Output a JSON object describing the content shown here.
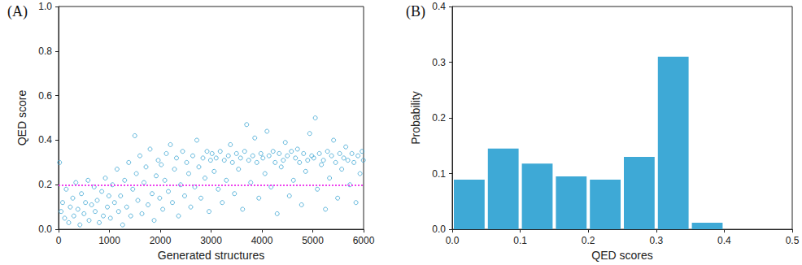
{
  "chart_data": [
    {
      "type": "scatter",
      "title": "(A)",
      "x_label": "Generated structures",
      "y_label": "QED score",
      "color": "#3ea6d3",
      "marker": "circle_open",
      "xlim": [
        0,
        6000
      ],
      "xticks": [
        0,
        1000,
        2000,
        3000,
        4000,
        5000,
        6000
      ],
      "ylim": [
        0,
        1.0
      ],
      "yticks": [
        {
          "value": 0,
          "label": "0.0"
        },
        {
          "value": 0.2,
          "label": "0.2"
        },
        {
          "value": 0.4,
          "label": "0.4"
        },
        {
          "value": 0.6,
          "label": "0.6"
        },
        {
          "value": 0.8,
          "label": "0.8"
        },
        {
          "value": 1.0,
          "label": "1.0"
        }
      ],
      "grid": false,
      "hline": {
        "value": 0.2,
        "color": "#ee44ee",
        "line_style": "dotted"
      },
      "x": [
        20,
        50,
        80,
        120,
        150,
        200,
        230,
        280,
        300,
        340,
        380,
        420,
        450,
        500,
        530,
        580,
        600,
        650,
        700,
        720,
        760,
        800,
        850,
        880,
        920,
        960,
        990,
        1020,
        1060,
        1100,
        1150,
        1180,
        1220,
        1260,
        1300,
        1340,
        1380,
        1420,
        1460,
        1500,
        1530,
        1560,
        1600,
        1640,
        1680,
        1720,
        1760,
        1800,
        1840,
        1880,
        1920,
        1960,
        1990,
        2020,
        2050,
        2090,
        2120,
        2160,
        2200,
        2240,
        2280,
        2320,
        2360,
        2400,
        2440,
        2480,
        2520,
        2560,
        2600,
        2640,
        2680,
        2720,
        2760,
        2800,
        2840,
        2880,
        2920,
        2960,
        2990,
        3020,
        3060,
        3100,
        3140,
        3180,
        3220,
        3260,
        3300,
        3340,
        3380,
        3420,
        3460,
        3500,
        3540,
        3580,
        3620,
        3660,
        3700,
        3740,
        3780,
        3820,
        3860,
        3900,
        3940,
        3980,
        4020,
        4060,
        4100,
        4140,
        4180,
        4220,
        4260,
        4300,
        4340,
        4380,
        4420,
        4460,
        4500,
        4540,
        4580,
        4620,
        4660,
        4700,
        4740,
        4780,
        4820,
        4860,
        4900,
        4940,
        4980,
        5020,
        5050,
        5090,
        5130,
        5170,
        5210,
        5250,
        5290,
        5330,
        5370,
        5410,
        5450,
        5490,
        5530,
        5570,
        5610,
        5650,
        5690,
        5730,
        5770,
        5810,
        5850,
        5890,
        5930,
        5970,
        5995
      ],
      "values": [
        0.3,
        0.08,
        0.12,
        0.05,
        0.18,
        0.03,
        0.1,
        0.14,
        0.06,
        0.21,
        0.09,
        0.02,
        0.16,
        0.07,
        0.12,
        0.22,
        0.04,
        0.11,
        0.19,
        0.08,
        0.13,
        0.03,
        0.17,
        0.06,
        0.23,
        0.1,
        0.15,
        0.05,
        0.2,
        0.12,
        0.27,
        0.08,
        0.15,
        0.02,
        0.22,
        0.1,
        0.3,
        0.06,
        0.18,
        0.42,
        0.25,
        0.13,
        0.33,
        0.07,
        0.21,
        0.28,
        0.11,
        0.36,
        0.16,
        0.04,
        0.24,
        0.31,
        0.14,
        0.29,
        0.09,
        0.22,
        0.34,
        0.17,
        0.38,
        0.12,
        0.27,
        0.32,
        0.06,
        0.2,
        0.35,
        0.15,
        0.3,
        0.25,
        0.1,
        0.33,
        0.19,
        0.4,
        0.28,
        0.14,
        0.32,
        0.23,
        0.35,
        0.08,
        0.31,
        0.34,
        0.26,
        0.32,
        0.18,
        0.35,
        0.12,
        0.31,
        0.22,
        0.33,
        0.38,
        0.3,
        0.16,
        0.34,
        0.27,
        0.32,
        0.09,
        0.35,
        0.47,
        0.31,
        0.21,
        0.33,
        0.41,
        0.3,
        0.14,
        0.34,
        0.32,
        0.25,
        0.44,
        0.33,
        0.19,
        0.35,
        0.3,
        0.07,
        0.34,
        0.28,
        0.31,
        0.39,
        0.33,
        0.15,
        0.35,
        0.22,
        0.32,
        0.36,
        0.3,
        0.11,
        0.34,
        0.26,
        0.31,
        0.43,
        0.33,
        0.32,
        0.5,
        0.18,
        0.34,
        0.29,
        0.31,
        0.09,
        0.35,
        0.23,
        0.33,
        0.4,
        0.3,
        0.14,
        0.34,
        0.27,
        0.32,
        0.37,
        0.31,
        0.2,
        0.34,
        0.3,
        0.12,
        0.33,
        0.25,
        0.35,
        0.31
      ]
    },
    {
      "type": "histogram",
      "title": "(B)",
      "x_label": "QED scores",
      "y_label": "Probability",
      "color": "#3ea9d6",
      "bins": [
        0,
        0.05,
        0.1,
        0.15,
        0.2,
        0.25,
        0.3,
        0.35,
        0.4
      ],
      "values": [
        0.089,
        0.145,
        0.118,
        0.095,
        0.089,
        0.13,
        0.31,
        0.012
      ],
      "xlim": [
        0,
        0.5
      ],
      "xticks": [
        {
          "value": 0,
          "label": "0.0"
        },
        0.1,
        0.2,
        0.3,
        0.4,
        0.5
      ],
      "ylim": [
        0,
        0.4
      ],
      "yticks": [
        {
          "value": 0,
          "label": "0.0"
        },
        0.1,
        0.2,
        0.3,
        0.4
      ],
      "grid": false
    }
  ]
}
